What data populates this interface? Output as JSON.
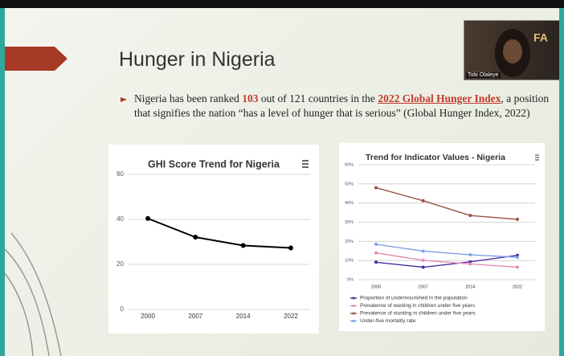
{
  "slide": {
    "title": "Hunger in Nigeria",
    "bullet": [
      "Nigeria has been ranked ",
      "103",
      " out of 121 countries in the ",
      "2022 Global Hunger Index",
      ", a position that signifies the nation “has a level of hunger that is serious” (Global Hunger Index, 2022)"
    ],
    "video_name": "Tobi Olaleye"
  },
  "chart_data": [
    {
      "type": "line",
      "title": "GHI Score Trend for Nigeria",
      "categories": [
        "2000",
        "2007",
        "2014",
        "2022"
      ],
      "values": [
        40.4,
        32.1,
        28.4,
        27.3
      ],
      "color": "#000000",
      "ylim": [
        0,
        60
      ],
      "yticks": [
        0,
        20,
        40,
        60
      ],
      "grid": true
    },
    {
      "type": "line",
      "title": "Trend for Indicator Values - Nigeria",
      "categories": [
        "2000",
        "2007",
        "2014",
        "2022"
      ],
      "series": [
        {
          "name": "Proportion of undernourished in the population",
          "color": "#4b2fa0",
          "values": [
            9.1,
            6.5,
            9.3,
            12.7
          ]
        },
        {
          "name": "Prevalence of wasting in children under five years",
          "color": "#e58bb9",
          "values": [
            14.0,
            10.1,
            8.2,
            6.5
          ]
        },
        {
          "name": "Prevalence of stunting in children under five years",
          "color": "#9c4f45",
          "values": [
            48.0,
            41.2,
            33.5,
            31.5
          ]
        },
        {
          "name": "Under-five mortality rate",
          "color": "#7d9ee8",
          "values": [
            18.5,
            14.9,
            13.0,
            11.7
          ]
        }
      ],
      "ylim": [
        0,
        60
      ],
      "yticks": [
        {
          "value": 0,
          "label": "0%"
        },
        {
          "value": 10,
          "label": "10%"
        },
        {
          "value": 20,
          "label": "20%"
        },
        {
          "value": 30,
          "label": "30%"
        },
        {
          "value": 40,
          "label": "40%"
        },
        {
          "value": 50,
          "label": "50%"
        },
        {
          "value": 60,
          "label": "60%"
        }
      ],
      "grid": true,
      "legend": "bottom"
    }
  ]
}
